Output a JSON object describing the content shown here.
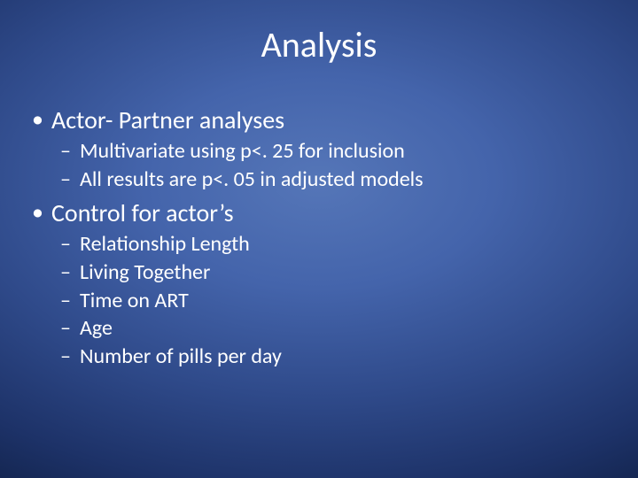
{
  "slide": {
    "title": "Analysis",
    "background": {
      "type": "radial-gradient",
      "center_color": "#5576b8",
      "mid_color": "#2f4a8a",
      "edge_color": "#081530"
    },
    "text_color": "#ffffff",
    "title_fontsize": 40,
    "level1_fontsize": 28,
    "level2_fontsize": 24,
    "font_family": "Calibri",
    "bullets": [
      {
        "level": 1,
        "text": "Actor- Partner  analyses",
        "children": [
          {
            "level": 2,
            "text": "Multivariate using p<. 25 for inclusion"
          },
          {
            "level": 2,
            "text": "All results are p<. 05 in adjusted models"
          }
        ]
      },
      {
        "level": 1,
        "text": "Control for actor’s",
        "children": [
          {
            "level": 2,
            "text": "Relationship Length"
          },
          {
            "level": 2,
            "text": "Living Together"
          },
          {
            "level": 2,
            "text": "Time on ART"
          },
          {
            "level": 2,
            "text": "Age"
          },
          {
            "level": 2,
            "text": "Number of pills per day"
          }
        ]
      }
    ]
  }
}
